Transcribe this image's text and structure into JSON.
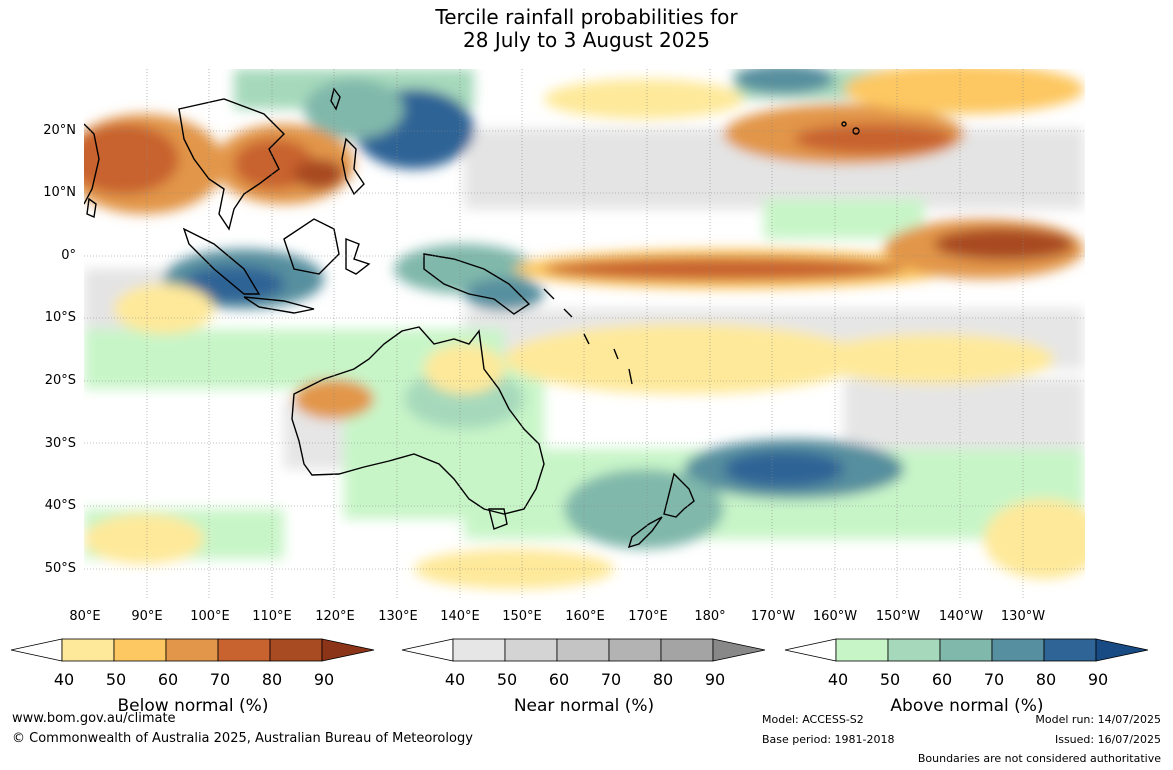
{
  "title_line1": "Tercile rainfall probabilities for",
  "title_line2": "28 July to 3 August 2025",
  "map": {
    "latitude_labels": [
      "20°N",
      "10°N",
      "0°",
      "10°S",
      "20°S",
      "30°S",
      "40°S",
      "50°S"
    ],
    "longitude_labels": [
      "80°E",
      "90°E",
      "100°E",
      "110°E",
      "120°E",
      "130°E",
      "140°E",
      "150°E",
      "160°E",
      "170°E",
      "180°",
      "170°W",
      "160°W",
      "150°W",
      "140°W",
      "130°W"
    ]
  },
  "legends": [
    {
      "title": "Below normal (%)",
      "ticks": [
        "40",
        "50",
        "60",
        "70",
        "80",
        "90"
      ],
      "colors": [
        "#ffffff",
        "#fee99a",
        "#fdc862",
        "#e2964a",
        "#c8622f",
        "#a84a22",
        "#8b3418"
      ]
    },
    {
      "title": "Near normal (%)",
      "ticks": [
        "40",
        "50",
        "60",
        "70",
        "80",
        "90"
      ],
      "colors": [
        "#ffffff",
        "#e6e6e6",
        "#d4d4d4",
        "#c4c4c4",
        "#b3b3b3",
        "#a4a4a4",
        "#888888"
      ]
    },
    {
      "title": "Above normal (%)",
      "ticks": [
        "40",
        "50",
        "60",
        "70",
        "80",
        "90"
      ],
      "colors": [
        "#ffffff",
        "#c8f5c8",
        "#a6d9bb",
        "#80b8ab",
        "#568f9f",
        "#2e6496",
        "#184a84"
      ]
    }
  ],
  "footer": {
    "website": "www.bom.gov.au/climate",
    "copyright": "© Commonwealth of Australia 2025, Australian Bureau of Meteorology",
    "model": "Model: ACCESS-S2",
    "base_period": "Base period: 1981-2018",
    "model_run": "Model run: 14/07/2025",
    "issued": "Issued: 16/07/2025",
    "disclaimer": "Boundaries are not considered authoritative"
  }
}
